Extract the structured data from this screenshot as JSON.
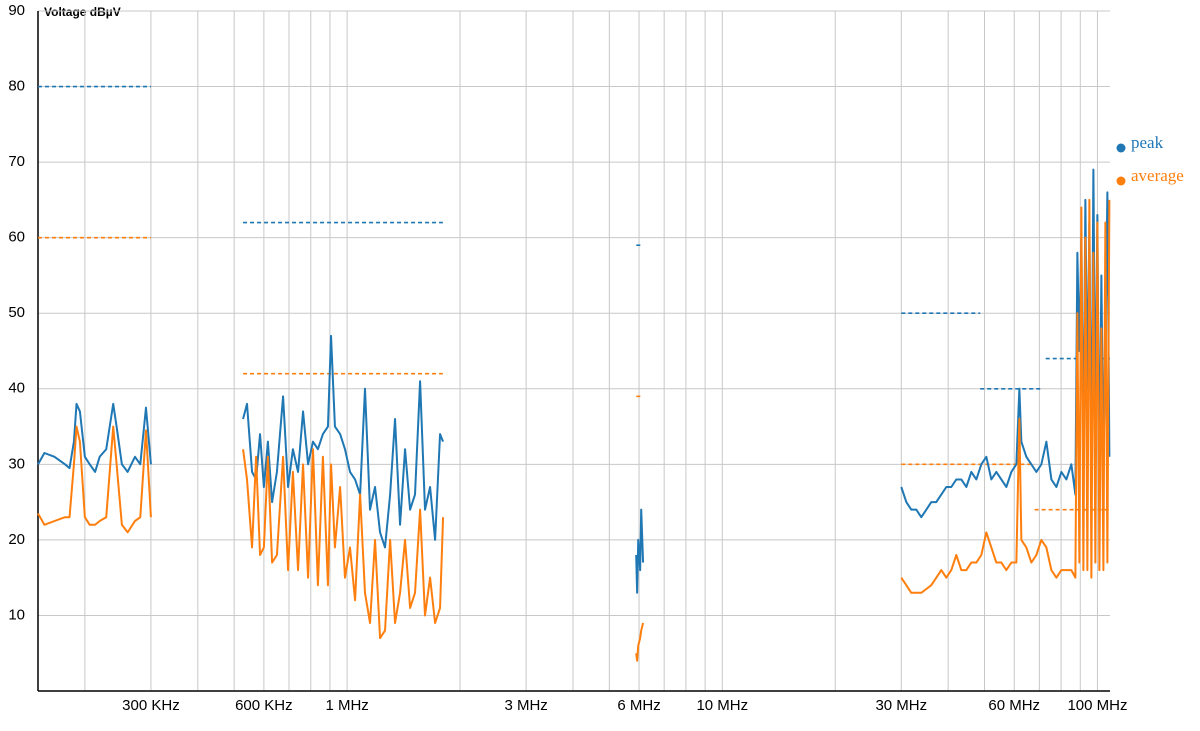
{
  "chart_data": {
    "type": "line",
    "y_label": "Voltage dBµV",
    "x_log": true,
    "grid": true,
    "legend": "right",
    "xlim": [
      0.15,
      108
    ],
    "ylim": [
      0,
      90
    ],
    "yticks": [
      10,
      20,
      30,
      40,
      50,
      60,
      70,
      80,
      90
    ],
    "xticks": [
      {
        "value": 0.3,
        "label": "300 KHz"
      },
      {
        "value": 0.6,
        "label": "600 KHz"
      },
      {
        "value": 1,
        "label": "1 MHz"
      },
      {
        "value": 3,
        "label": "3 MHz"
      },
      {
        "value": 6,
        "label": "6 MHz"
      },
      {
        "value": 10,
        "label": "10 MHz"
      },
      {
        "value": 30,
        "label": "30 MHz"
      },
      {
        "value": 60,
        "label": "60 MHz"
      },
      {
        "value": 100,
        "label": "100 MHz"
      }
    ],
    "xgrid": [
      0.2,
      0.4,
      0.5,
      0.7,
      0.8,
      0.9,
      2,
      4,
      5,
      7,
      8,
      9,
      20,
      40,
      50,
      70,
      80,
      90
    ],
    "x": [
      [
        0.15,
        0.156,
        0.166,
        0.177,
        0.182,
        0.187,
        0.19,
        0.194,
        0.2,
        0.206,
        0.213,
        0.219,
        0.228,
        0.238,
        0.243,
        0.251,
        0.26,
        0.272,
        0.281,
        0.291,
        0.3
      ],
      [
        0.528,
        0.541,
        0.558,
        0.572,
        0.586,
        0.6,
        0.615,
        0.631,
        0.65,
        0.675,
        0.696,
        0.717,
        0.74,
        0.763,
        0.787,
        0.811,
        0.836,
        0.862,
        0.889,
        0.906,
        0.928,
        0.958,
        0.987,
        1.018,
        1.05,
        1.083,
        1.116,
        1.151,
        1.187,
        1.224,
        1.262,
        1.302,
        1.342,
        1.384,
        1.427,
        1.472,
        1.517,
        1.565,
        1.613,
        1.664,
        1.716,
        1.769,
        1.802
      ],
      [
        5.895,
        5.93,
        5.97,
        6.04,
        6.08,
        6.15
      ],
      [
        30.0,
        30.94,
        31.9,
        32.9,
        33.92,
        34.98,
        36.07,
        37.19,
        38.35,
        39.55,
        40.78,
        42.05,
        43.36,
        44.72,
        46.11,
        47.55,
        49.03,
        50.56,
        52.13,
        53.76,
        55.43,
        57.16,
        58.95,
        60.79,
        61.92,
        62.68,
        64.63,
        66.65,
        68.73,
        70.87,
        73.08,
        75.36,
        77.71,
        80.13,
        82.63,
        85.2,
        87.32,
        88.4,
        89.49,
        90.6,
        91.72,
        92.85,
        94.0,
        95.16,
        96.34,
        97.53,
        98.73,
        99.95,
        101.19,
        102.44,
        103.7,
        104.98,
        106.28,
        107.59
      ]
    ],
    "series": [
      {
        "name": "peak",
        "color": "#1f77b4",
        "values": [
          [
            30,
            31.5,
            31,
            30,
            29.5,
            33,
            38,
            37,
            31,
            30,
            29,
            31,
            32,
            38,
            35,
            30,
            29,
            31,
            30,
            37.5,
            30
          ],
          [
            36,
            38,
            29,
            28,
            34,
            27,
            33,
            25,
            29,
            39,
            27,
            32,
            29,
            37,
            30,
            33,
            32,
            34,
            35,
            47,
            35,
            34,
            32,
            29,
            28,
            26,
            40,
            24,
            27,
            21,
            19,
            26,
            36,
            22,
            32,
            24,
            26,
            41,
            24,
            27,
            20,
            34,
            33
          ],
          [
            18,
            13,
            20,
            16,
            24,
            17
          ],
          [
            27,
            25,
            24,
            24,
            23,
            24,
            25,
            25,
            26,
            27,
            27,
            28,
            28,
            27,
            29,
            28,
            30,
            31,
            28,
            29,
            28,
            27,
            29,
            30,
            40,
            33,
            31,
            30,
            29,
            30,
            33,
            28,
            27,
            29,
            28,
            30,
            26,
            58,
            45,
            60,
            30,
            65,
            40,
            62,
            28,
            69,
            35,
            63,
            27,
            55,
            30,
            45,
            66,
            31
          ]
        ]
      },
      {
        "name": "average",
        "color": "#ff7f0e",
        "values": [
          [
            23.5,
            22,
            22.5,
            23,
            23,
            30,
            35,
            33,
            23,
            22,
            22,
            22.5,
            23,
            35,
            30,
            22,
            21,
            22.5,
            23,
            34.5,
            23
          ],
          [
            32,
            28,
            19,
            31,
            18,
            19,
            31,
            17,
            18,
            31,
            16,
            29,
            16,
            30,
            15,
            32,
            14,
            31,
            14,
            30,
            19,
            27,
            15,
            19,
            12,
            26,
            13,
            9,
            20,
            7,
            8,
            20,
            9,
            13,
            20,
            11,
            13,
            24,
            10,
            15,
            9,
            11,
            23
          ],
          [
            5,
            4,
            6,
            7,
            8,
            9
          ],
          [
            15,
            14,
            13,
            13,
            13,
            13.5,
            14,
            15,
            16,
            15,
            16,
            18,
            16,
            16,
            17,
            17,
            18,
            21,
            19,
            17,
            17,
            16,
            17,
            17,
            36,
            20,
            19,
            17,
            18,
            20,
            19,
            16,
            15,
            16,
            16,
            16,
            15,
            50,
            17,
            64,
            16,
            60,
            16,
            65,
            15,
            58,
            17,
            62,
            16,
            48,
            16,
            62,
            17,
            65
          ]
        ]
      }
    ],
    "limits": [
      {
        "color": "#1f77b4",
        "segments": [
          {
            "x": [
              0.15,
              0.3
            ],
            "value": 80
          },
          {
            "x": [
              0.528,
              1.8
            ],
            "value": 62
          },
          {
            "x": [
              5.9,
              6.1
            ],
            "value": 59
          },
          {
            "x": [
              30,
              48.7
            ],
            "value": 50
          },
          {
            "x": [
              48.7,
              71.7
            ],
            "value": 40
          },
          {
            "x": [
              72.8,
              108
            ],
            "value": 44
          }
        ]
      },
      {
        "color": "#ff7f0e",
        "segments": [
          {
            "x": [
              0.15,
              0.3
            ],
            "value": 60
          },
          {
            "x": [
              0.528,
              1.8
            ],
            "value": 42
          },
          {
            "x": [
              5.9,
              6.1
            ],
            "value": 39
          },
          {
            "x": [
              30,
              68
            ],
            "value": 30
          },
          {
            "x": [
              68,
              108
            ],
            "value": 24
          }
        ]
      }
    ]
  }
}
